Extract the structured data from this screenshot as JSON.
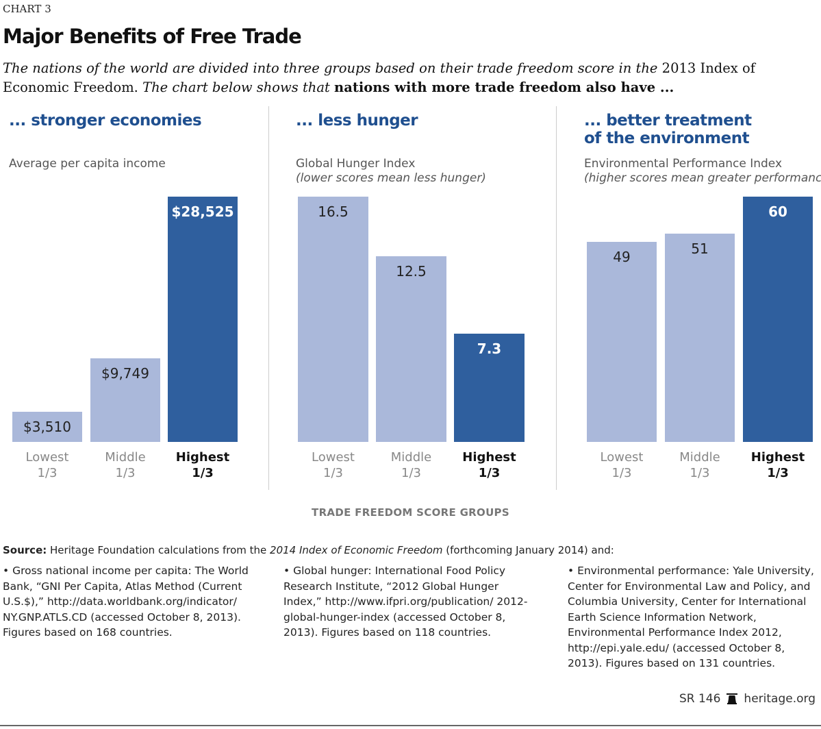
{
  "header": {
    "chart_label": "CHART 3",
    "title": "Major Benefits of Free Trade",
    "subtitle_1": "The nations of the world are divided into three groups based on their trade freedom score in the ",
    "subtitle_year": "2013",
    "subtitle_2": " Index of Economic Freedom.",
    "subtitle_3": " The chart below shows that ",
    "subtitle_bold": "nations with more trade freedom also have ..."
  },
  "chart_data": [
    {
      "type": "bar",
      "title": "... stronger economies",
      "ylabel": "Average per capita income",
      "ynote": "",
      "categories": [
        [
          "Lowest",
          "1/3"
        ],
        [
          "Middle",
          "1/3"
        ],
        [
          "Highest",
          "1/3"
        ]
      ],
      "values": [
        3510,
        9749,
        28525
      ],
      "labels": [
        "$3,510",
        "$9,749",
        "$28,525"
      ],
      "ylim": [
        0,
        28525
      ]
    },
    {
      "type": "bar",
      "title": "... less hunger",
      "ylabel": "Global Hunger Index",
      "ynote": "(lower scores mean less hunger)",
      "categories": [
        [
          "Lowest",
          "1/3"
        ],
        [
          "Middle",
          "1/3"
        ],
        [
          "Highest",
          "1/3"
        ]
      ],
      "values": [
        16.5,
        12.5,
        7.3
      ],
      "labels": [
        "16.5",
        "12.5",
        "7.3"
      ],
      "ylim": [
        0,
        16.5
      ]
    },
    {
      "type": "bar",
      "title": "... better treatment of the environment",
      "ylabel": "Environmental Performance Index",
      "ynote": "(higher scores mean greater performance)",
      "categories": [
        [
          "Lowest",
          "1/3"
        ],
        [
          "Middle",
          "1/3"
        ],
        [
          "Highest",
          "1/3"
        ]
      ],
      "values": [
        49,
        51,
        60
      ],
      "labels": [
        "49",
        "51",
        "60"
      ],
      "ylim": [
        0,
        60
      ]
    }
  ],
  "xlabel": "TRADE FREEDOM SCORE GROUPS",
  "colors": {
    "light": "#aab8da",
    "dark": "#2f5f9e",
    "heading": "#1f4f8f"
  },
  "source": {
    "label": "Source:",
    "text_1": " Heritage Foundation calculations from the ",
    "italic": "2014 Index of Economic Freedom",
    "text_2": " (forthcoming January 2014) and:"
  },
  "notes": [
    "• Gross national income per capita: The World Bank, “GNI Per Capita, Atlas Method (Current U.S.$),” http://data.worldbank.org/indicator/ NY.GNP.ATLS.CD (accessed October 8, 2013). Figures based on 168 countries.",
    "• Global hunger: International Food Policy Research Institute, “2012 Global Hunger Index,” http://www.ifpri.org/publication/ 2012-global-hunger-index (accessed October 8, 2013). Figures based on 118 countries.",
    "• Environmental performance: Yale University, Center for Environmental Law and Policy, and Columbia University, Center for International Earth Science Information Network, Environmental Performance Index 2012, http://epi.yale.edu/ (accessed October 8, 2013). Figures based on 131 countries."
  ],
  "footer": {
    "report": "SR 146",
    "site": "heritage.org",
    "icon": "liberty-bell-icon"
  }
}
